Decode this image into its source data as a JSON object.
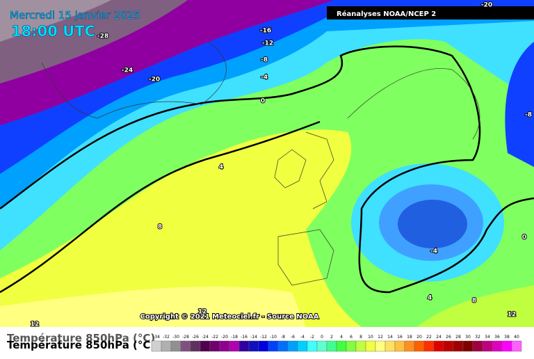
{
  "header": {
    "date": "Mercredi 15 janvier 2025",
    "time": "18:00 UTC",
    "source": "Réanalyses NOAA/NCEP 2"
  },
  "contour_labels": [
    -28,
    -24,
    -20,
    -16,
    -12,
    -8,
    -4,
    0,
    4,
    8,
    -20,
    -8,
    0,
    -4,
    4,
    8,
    12,
    12,
    12
  ],
  "copyright": "Copyright © 2021 Meteociel.fr - Source NOAA",
  "legend": {
    "title": "Température 850hPa (°C)",
    "ticks": [
      -34,
      -32,
      -30,
      -28,
      -26,
      -24,
      -22,
      -20,
      -18,
      -16,
      -14,
      -12,
      -10,
      -8,
      -6,
      -4,
      -2,
      0,
      2,
      4,
      6,
      8,
      10,
      12,
      14,
      16,
      18,
      20,
      22,
      24,
      26,
      28,
      30,
      32,
      34,
      36,
      38,
      40
    ],
    "colors": [
      "#d0d0d0",
      "#b0b0b0",
      "#909090",
      "#805080",
      "#603060",
      "#500050",
      "#700070",
      "#900090",
      "#b000b0",
      "#3000a0",
      "#1010c0",
      "#0000e0",
      "#0040ff",
      "#0070ff",
      "#00a0ff",
      "#00d0ff",
      "#40ffff",
      "#60ffd0",
      "#40ff90",
      "#40ff40",
      "#80ff40",
      "#c0ff40",
      "#f0ff40",
      "#ffff80",
      "#ffe060",
      "#ffc040",
      "#ff9020",
      "#ff6000",
      "#ff3000",
      "#e00000",
      "#c00000",
      "#a00000",
      "#800000",
      "#a00040",
      "#c00080",
      "#e000c0",
      "#ff00ff",
      "#ff60ff"
    ]
  }
}
